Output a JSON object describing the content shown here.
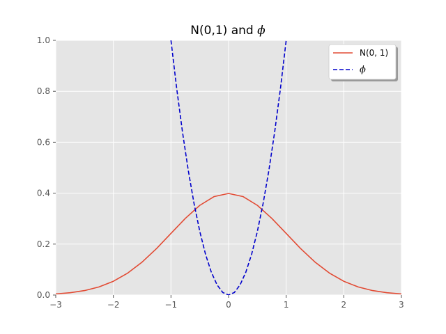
{
  "chart_data": {
    "type": "line",
    "title": "N(0,1) and ",
    "title_symbol": "ϕ",
    "xlabel": "",
    "ylabel": "",
    "xlim": [
      -3,
      3
    ],
    "ylim": [
      0,
      1
    ],
    "xticks": [
      -3,
      -2,
      -1,
      0,
      1,
      2,
      3
    ],
    "xtick_labels": [
      "−3",
      "−2",
      "−1",
      "0",
      "1",
      "2",
      "3"
    ],
    "yticks": [
      0,
      0.2,
      0.4,
      0.6,
      0.8,
      1.0
    ],
    "ytick_labels": [
      "0.0",
      "0.2",
      "0.4",
      "0.6",
      "0.8",
      "1.0"
    ],
    "grid": true,
    "legend_position": "top-right",
    "background_color": "#e5e5e5",
    "grid_color": "#ffffff",
    "series": [
      {
        "name": "N(0, 1)",
        "color": "#e24a33",
        "style": "solid",
        "x": [
          -3,
          -2.75,
          -2.5,
          -2.25,
          -2,
          -1.75,
          -1.5,
          -1.25,
          -1,
          -0.75,
          -0.5,
          -0.25,
          0,
          0.25,
          0.5,
          0.75,
          1,
          1.25,
          1.5,
          1.75,
          2,
          2.25,
          2.5,
          2.75,
          3
        ],
        "y": [
          0.0044,
          0.0091,
          0.0175,
          0.0317,
          0.054,
          0.0863,
          0.1295,
          0.1826,
          0.242,
          0.3011,
          0.3521,
          0.3867,
          0.3989,
          0.3867,
          0.3521,
          0.3011,
          0.242,
          0.1826,
          0.1295,
          0.0863,
          0.054,
          0.0317,
          0.0175,
          0.0091,
          0.0044
        ]
      },
      {
        "name": "ϕ",
        "color": "#0000cc",
        "style": "dashed",
        "x": [
          -1.0,
          -0.9,
          -0.8,
          -0.7,
          -0.6,
          -0.5,
          -0.4,
          -0.3,
          -0.2,
          -0.1,
          0,
          0.1,
          0.2,
          0.3,
          0.4,
          0.5,
          0.6,
          0.7,
          0.8,
          0.9,
          1.0
        ],
        "y": [
          1.0,
          0.81,
          0.64,
          0.49,
          0.36,
          0.25,
          0.16,
          0.09,
          0.04,
          0.01,
          0,
          0.01,
          0.04,
          0.09,
          0.16,
          0.25,
          0.36,
          0.49,
          0.64,
          0.81,
          1.0
        ]
      }
    ]
  }
}
